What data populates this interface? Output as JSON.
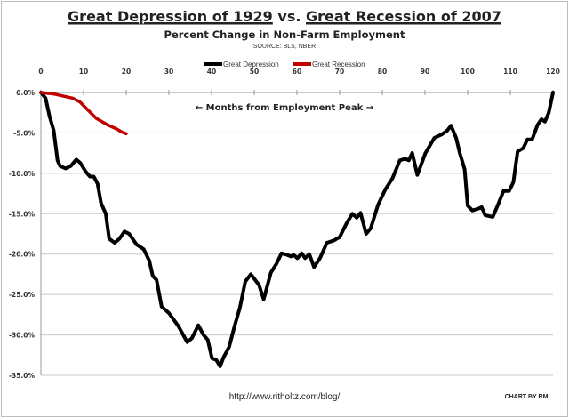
{
  "chart_data": {
    "type": "line",
    "title_part1": "Great Depression of 1929",
    "title_vs": "vs.",
    "title_part2": "Great Recession of 2007",
    "subtitle": "Percent Change in Non-Farm Employment",
    "source": "SOURCE: BLS, NBER",
    "xlabel": "← Months from Employment Peak →",
    "ylabel": "",
    "xlim": [
      0,
      120
    ],
    "ylim": [
      -35,
      0
    ],
    "x_ticks": [
      "0",
      "10",
      "20",
      "30",
      "40",
      "50",
      "60",
      "70",
      "80",
      "90",
      "100",
      "110",
      "120"
    ],
    "y_ticks": [
      "0.0%",
      "-5.0%",
      "-10.0%",
      "-15.0%",
      "-20.0%",
      "-25.0%",
      "-30.0%",
      "-35.0%"
    ],
    "grid": "horizontal",
    "legend_position": "top",
    "x_axis_position": "top",
    "series": [
      {
        "name": "Great Depression",
        "color": "#000000",
        "points": [
          [
            0,
            0
          ],
          [
            1.1,
            -0.7
          ],
          [
            2,
            -2.9
          ],
          [
            3,
            -4.7
          ],
          [
            3.9,
            -8.4
          ],
          [
            4.5,
            -9.1
          ],
          [
            5.8,
            -9.4
          ],
          [
            7,
            -9.1
          ],
          [
            8.3,
            -8.3
          ],
          [
            9.2,
            -8.7
          ],
          [
            10.5,
            -9.8
          ],
          [
            11.5,
            -10.4
          ],
          [
            12.4,
            -10.4
          ],
          [
            13.3,
            -11.3
          ],
          [
            14.1,
            -13.7
          ],
          [
            15.2,
            -15
          ],
          [
            16,
            -18.1
          ],
          [
            17.3,
            -18.6
          ],
          [
            18.4,
            -18.1
          ],
          [
            19.6,
            -17.2
          ],
          [
            20.7,
            -17.5
          ],
          [
            22.4,
            -18.8
          ],
          [
            24.1,
            -19.4
          ],
          [
            25.4,
            -20.8
          ],
          [
            26.2,
            -22.7
          ],
          [
            27.1,
            -23.2
          ],
          [
            28.3,
            -26.5
          ],
          [
            30,
            -27.3
          ],
          [
            32.2,
            -28.9
          ],
          [
            34.3,
            -30.9
          ],
          [
            35.4,
            -30.4
          ],
          [
            36.9,
            -28.8
          ],
          [
            38.1,
            -30
          ],
          [
            39.1,
            -30.6
          ],
          [
            40.1,
            -32.9
          ],
          [
            41.1,
            -33.1
          ],
          [
            42,
            -33.9
          ],
          [
            42.8,
            -32.8
          ],
          [
            44.1,
            -31.5
          ],
          [
            45.4,
            -28.9
          ],
          [
            46.6,
            -26.7
          ],
          [
            47.9,
            -23.4
          ],
          [
            49.2,
            -22.5
          ],
          [
            50.5,
            -23.4
          ],
          [
            51.1,
            -23.8
          ],
          [
            52.2,
            -25.6
          ],
          [
            53.9,
            -22.3
          ],
          [
            55.2,
            -21.2
          ],
          [
            56.4,
            -19.9
          ],
          [
            57.7,
            -20.1
          ],
          [
            58.6,
            -20.3
          ],
          [
            59.2,
            -20.1
          ],
          [
            60.1,
            -20.5
          ],
          [
            61.1,
            -19.9
          ],
          [
            61.9,
            -20.5
          ],
          [
            62.9,
            -20
          ],
          [
            64,
            -21.6
          ],
          [
            65.4,
            -20.5
          ],
          [
            67,
            -18.6
          ],
          [
            68.7,
            -18.3
          ],
          [
            70,
            -17.9
          ],
          [
            71.7,
            -16.1
          ],
          [
            73,
            -15
          ],
          [
            74,
            -15.5
          ],
          [
            74.9,
            -14.9
          ],
          [
            76.2,
            -17.5
          ],
          [
            77.3,
            -16.8
          ],
          [
            79,
            -13.9
          ],
          [
            80.7,
            -12
          ],
          [
            82.4,
            -10.6
          ],
          [
            84.1,
            -8.4
          ],
          [
            85.4,
            -8.2
          ],
          [
            86.2,
            -8.4
          ],
          [
            87,
            -7.5
          ],
          [
            88.2,
            -10.2
          ],
          [
            90.1,
            -7.5
          ],
          [
            92.2,
            -5.6
          ],
          [
            93.9,
            -5.2
          ],
          [
            95.2,
            -4.7
          ],
          [
            96.1,
            -4.1
          ],
          [
            97.3,
            -5.6
          ],
          [
            98.2,
            -7.6
          ],
          [
            99.3,
            -9.5
          ],
          [
            100,
            -14
          ],
          [
            101.1,
            -14.6
          ],
          [
            102.4,
            -14.4
          ],
          [
            103.3,
            -14.2
          ],
          [
            104.1,
            -15.2
          ],
          [
            105.9,
            -15.4
          ],
          [
            107.1,
            -13.9
          ],
          [
            108.4,
            -12.2
          ],
          [
            109.7,
            -12.2
          ],
          [
            110.7,
            -11.1
          ],
          [
            111.7,
            -7.3
          ],
          [
            113,
            -6.9
          ],
          [
            114,
            -5.8
          ],
          [
            115.1,
            -5.8
          ],
          [
            116.4,
            -4
          ],
          [
            117.3,
            -3.3
          ],
          [
            118.1,
            -3.6
          ],
          [
            119,
            -2.5
          ],
          [
            120,
            0
          ]
        ]
      },
      {
        "name": "Great Recession",
        "color": "#c00000",
        "points": [
          [
            0,
            0
          ],
          [
            3.2,
            -0.2
          ],
          [
            7.5,
            -0.7
          ],
          [
            9.2,
            -1.2
          ],
          [
            10.9,
            -2.1
          ],
          [
            13,
            -3.2
          ],
          [
            15.6,
            -4
          ],
          [
            17.7,
            -4.5
          ],
          [
            19,
            -4.9
          ],
          [
            20,
            -5.1
          ]
        ]
      }
    ]
  },
  "footer": {
    "url": "http://www.ritholtz.com/blog/",
    "credit": "CHART BY RM"
  }
}
